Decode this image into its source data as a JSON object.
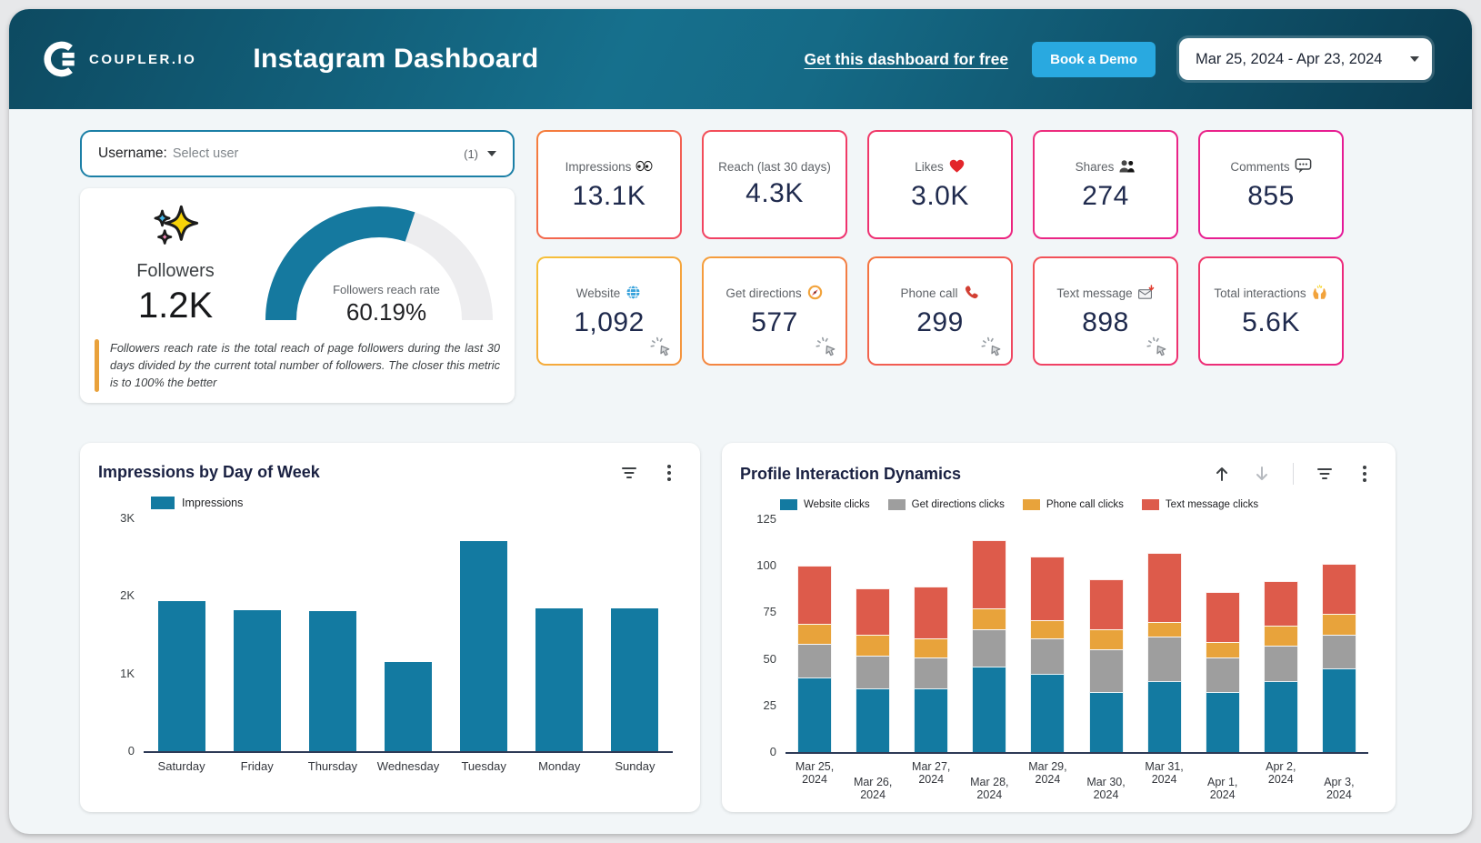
{
  "header": {
    "brand": "COUPLER.IO",
    "title": "Instagram Dashboard",
    "link": "Get this dashboard for free",
    "demo_button": "Book a Demo",
    "date_range": "Mar 25, 2024 - Apr 23, 2024"
  },
  "filter": {
    "label": "Username:",
    "placeholder": "Select user",
    "count": "(1)"
  },
  "followers": {
    "icon": "sparkles-icon",
    "label": "Followers",
    "value": "1.2K",
    "gauge_label": "Followers reach rate",
    "gauge_value": "60.19%",
    "gauge_percent": 60.19,
    "gauge_color": "#15799f",
    "gauge_track_color": "#ededef",
    "note": "Followers reach rate is the total reach of page followers during the last 30 days divided by the current total number of followers. The closer this metric is to 100% the better"
  },
  "cards": {
    "rows": [
      [
        {
          "label": "Impressions",
          "icon": "eyes-icon",
          "value": "13.1K",
          "border": [
            "#f5803c",
            "#f14e60"
          ],
          "click_badge": false
        },
        {
          "label": "Reach (last 30 days)",
          "icon": null,
          "value": "4.3K",
          "border": [
            "#f35058",
            "#ef306f"
          ],
          "click_badge": false
        },
        {
          "label": "Likes",
          "icon": "heart-icon",
          "value": "3.0K",
          "border": [
            "#f03a68",
            "#ec2380"
          ],
          "click_badge": false
        },
        {
          "label": "Shares",
          "icon": "people-icon",
          "value": "274",
          "border": [
            "#ed2f7d",
            "#e81d8d"
          ],
          "click_badge": false
        },
        {
          "label": "Comments",
          "icon": "comment-icon",
          "value": "855",
          "border": [
            "#ea2489",
            "#e4189a"
          ],
          "click_badge": false
        }
      ],
      [
        {
          "label": "Website",
          "icon": "globe-icon",
          "value": "1,092",
          "border": [
            "#f6c23a",
            "#f4923e"
          ],
          "click_badge": true
        },
        {
          "label": "Get directions",
          "icon": "compass-icon",
          "value": "577",
          "border": [
            "#f5a03c",
            "#f26a49"
          ],
          "click_badge": true
        },
        {
          "label": "Phone call",
          "icon": "phone-icon",
          "value": "299",
          "border": [
            "#f4773f",
            "#f04463"
          ],
          "click_badge": true
        },
        {
          "label": "Text message",
          "icon": "envelope-icon",
          "value": "898",
          "border": [
            "#f25456",
            "#ee2f72"
          ],
          "click_badge": true
        },
        {
          "label": "Total interactions",
          "icon": "hands-icon",
          "value": "5.6K",
          "border": [
            "#ef3a6a",
            "#ea2187"
          ],
          "click_badge": false
        }
      ]
    ]
  },
  "chart_data": [
    {
      "type": "bar",
      "title": "Impressions by Day of Week",
      "legend": "Impressions",
      "color": "#137aa1",
      "categories": [
        "Saturday",
        "Friday",
        "Thursday",
        "Wednesday",
        "Tuesday",
        "Monday",
        "Sunday"
      ],
      "values": [
        1930,
        1820,
        1810,
        1150,
        2710,
        1840,
        1840
      ],
      "ylim": [
        0,
        3000
      ],
      "yticks": [
        {
          "v": 0,
          "label": "0"
        },
        {
          "v": 1000,
          "label": "1K"
        },
        {
          "v": 2000,
          "label": "2K"
        },
        {
          "v": 3000,
          "label": "3K"
        }
      ],
      "grid": false,
      "legend_position": "top-left"
    },
    {
      "type": "stacked-bar",
      "title": "Profile Interaction Dynamics",
      "categories": [
        "Mar 25, 2024",
        "Mar 26, 2024",
        "Mar 27, 2024",
        "Mar 28, 2024",
        "Mar 29, 2024",
        "Mar 30, 2024",
        "Mar 31, 2024",
        "Apr 1, 2024",
        "Apr 2, 2024",
        "Apr 3, 2024"
      ],
      "series": [
        {
          "name": "Website clicks",
          "color": "#137aa1",
          "values": [
            40,
            34,
            34,
            46,
            42,
            32,
            38,
            32,
            38,
            45
          ]
        },
        {
          "name": "Get directions clicks",
          "color": "#9e9e9e",
          "values": [
            18,
            18,
            17,
            20,
            19,
            23,
            24,
            19,
            19,
            18
          ]
        },
        {
          "name": "Phone call clicks",
          "color": "#e8a33b",
          "values": [
            11,
            11,
            10,
            11,
            10,
            11,
            8,
            8,
            11,
            11
          ]
        },
        {
          "name": "Text message clicks",
          "color": "#dd5b4b",
          "values": [
            31,
            25,
            28,
            37,
            34,
            27,
            37,
            27,
            24,
            27
          ]
        }
      ],
      "ylim": [
        0,
        125
      ],
      "yticks": [
        {
          "v": 0,
          "label": "0"
        },
        {
          "v": 25,
          "label": "25"
        },
        {
          "v": 50,
          "label": "50"
        },
        {
          "v": 75,
          "label": "75"
        },
        {
          "v": 100,
          "label": "100"
        },
        {
          "v": 125,
          "label": "125"
        }
      ],
      "grid": false,
      "legend_position": "top-left",
      "xlabel_stagger": true
    }
  ]
}
